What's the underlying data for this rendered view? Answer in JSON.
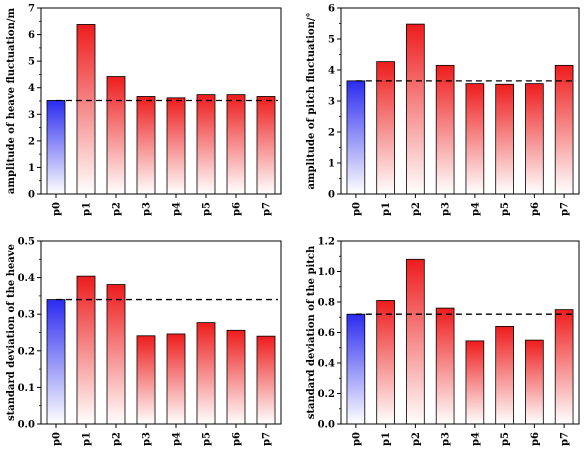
{
  "gradients": {
    "red_top": "#ee1c1c",
    "red_bottom": "#ffffff",
    "blue_top": "#2b2bf0",
    "blue_bottom": "#ffffff"
  },
  "chart_data": [
    {
      "type": "bar",
      "ylabel": "amplitude of heave fluctuation/m",
      "categories": [
        "p0",
        "p1",
        "p2",
        "p3",
        "p4",
        "p5",
        "p6",
        "p7"
      ],
      "values": [
        3.52,
        6.38,
        4.42,
        3.67,
        3.62,
        3.74,
        3.74,
        3.67
      ],
      "ylim": [
        0,
        7
      ],
      "yticks": [
        "0",
        "1",
        "2",
        "3",
        "4",
        "5",
        "6",
        "7"
      ],
      "reference_line": 3.52,
      "highlight_index": 0
    },
    {
      "type": "bar",
      "ylabel": "amplitude of pitch fluctuation/°",
      "categories": [
        "p0",
        "p1",
        "p2",
        "p3",
        "p4",
        "p5",
        "p6",
        "p7"
      ],
      "values": [
        3.65,
        4.27,
        5.48,
        4.15,
        3.56,
        3.54,
        3.56,
        4.15
      ],
      "ylim": [
        0,
        6
      ],
      "yticks": [
        "0",
        "1",
        "2",
        "3",
        "4",
        "5",
        "6"
      ],
      "reference_line": 3.65,
      "highlight_index": 0
    },
    {
      "type": "bar",
      "ylabel": "standard deviation of the heave",
      "categories": [
        "p0",
        "p1",
        "p2",
        "p3",
        "p4",
        "p5",
        "p6",
        "p7"
      ],
      "values": [
        0.34,
        0.404,
        0.381,
        0.241,
        0.246,
        0.277,
        0.256,
        0.24
      ],
      "ylim": [
        0,
        0.5
      ],
      "yticks": [
        "0.0",
        "0.1",
        "0.2",
        "0.3",
        "0.4",
        "0.5"
      ],
      "reference_line": 0.34,
      "highlight_index": 0
    },
    {
      "type": "bar",
      "ylabel": "standard deviation of the pitch",
      "categories": [
        "p0",
        "p1",
        "p2",
        "p3",
        "p4",
        "p5",
        "p6",
        "p7"
      ],
      "values": [
        0.72,
        0.81,
        1.08,
        0.76,
        0.545,
        0.64,
        0.55,
        0.75
      ],
      "ylim": [
        0,
        1.2
      ],
      "yticks": [
        "0.0",
        "0.2",
        "0.4",
        "0.6",
        "0.8",
        "1.0",
        "1.2"
      ],
      "reference_line": 0.72,
      "highlight_index": 0
    }
  ]
}
